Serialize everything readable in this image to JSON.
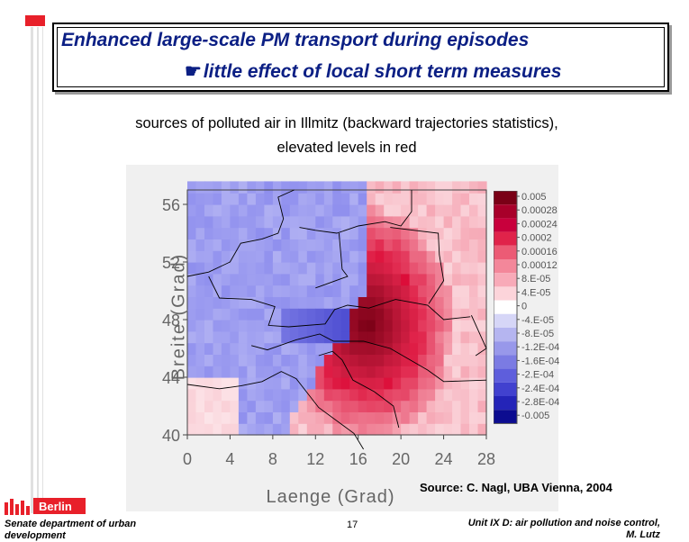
{
  "slide": {
    "title_line1": "Enhanced large-scale PM transport during episodes",
    "title_line2_pointer": "☛",
    "title_line2": "little effect of local short term measures",
    "subtitle_line1": "sources of polluted air in Illmitz (backward trajectories statistics),",
    "subtitle_line2": "elevated levels in red",
    "source": "Source: C. Nagl, UBA Vienna, 2004"
  },
  "footer": {
    "logo_text": "Berlin",
    "department": "Senate department of urban development",
    "page_number": "17",
    "unit_line1": "Unit IX D: air pollution and noise control,",
    "unit_line2": "M. Lutz"
  },
  "colors": {
    "title": "#0b1f84",
    "accent_red": "#e8202a",
    "map_blue": "#9a9af0",
    "map_red": "#e0234a"
  },
  "chart_data": {
    "type": "heatmap",
    "title": "",
    "xlabel": "Laenge (Grad)",
    "ylabel": "Breite (Grad)",
    "x_ticks": [
      "0",
      "4",
      "8",
      "12",
      "16",
      "20",
      "24",
      "28"
    ],
    "y_ticks": [
      "56",
      "52",
      "48",
      "44",
      "40"
    ],
    "xlim": [
      0,
      28
    ],
    "ylim": [
      40,
      57
    ],
    "colorbar_labels": [
      "0.005",
      "0.00028",
      "0.00024",
      "0.0002",
      "0.00016",
      "0.00012",
      "8.E-05",
      "4.E-05",
      "0",
      "-4.E-05",
      "-8.E-05",
      "-1.2E-04",
      "-1.6E-04",
      "-2.E-04",
      "-2.4E-04",
      "-2.8E-04",
      "-0.005"
    ],
    "colorbar_colors": [
      "#7a0016",
      "#a8002a",
      "#c8003c",
      "#e0234a",
      "#ec5b75",
      "#f3879a",
      "#f8aab8",
      "#fcd4da",
      "#ffffff",
      "#d6d6f7",
      "#b5b5f0",
      "#9898ea",
      "#7b7be3",
      "#5e5edc",
      "#4141cf",
      "#2424b8",
      "#0c0c90"
    ],
    "receptor": "Illmitz",
    "receptor_lon": 16.8,
    "receptor_lat": 47.8
  }
}
